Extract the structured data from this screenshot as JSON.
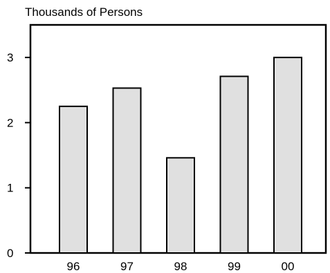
{
  "chart_data": {
    "type": "bar",
    "title": "",
    "ylabel": "Thousands of Persons",
    "xlabel": "",
    "categories": [
      "96",
      "97",
      "98",
      "99",
      "00"
    ],
    "values": [
      2.25,
      2.53,
      1.46,
      2.71,
      3.0
    ],
    "ylim": [
      0,
      3.5
    ],
    "yticks": [
      0,
      1,
      2,
      3
    ],
    "grid": false,
    "legend": "none",
    "colors": {
      "bar_fill": "#e0e0e0",
      "bar_stroke": "#000000",
      "axis": "#000000",
      "background": "#ffffff"
    }
  }
}
